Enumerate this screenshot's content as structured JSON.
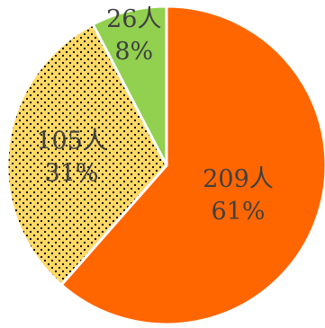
{
  "chart_data": {
    "type": "pie",
    "start_angle_deg": 0,
    "direction": "clockwise",
    "slices": [
      {
        "name": "",
        "value": 209,
        "count_label": "209人",
        "percent_label": "61%",
        "color": "#ff6600",
        "pattern": "none"
      },
      {
        "name": "",
        "value": 105,
        "count_label": "105人",
        "percent_label": "31%",
        "color": "#ffd966",
        "pattern": "dots"
      },
      {
        "name": "",
        "value": 26,
        "count_label": "26人",
        "percent_label": "8%",
        "color": "#92d050",
        "pattern": "none"
      }
    ],
    "separator_color": "#ffffff"
  }
}
